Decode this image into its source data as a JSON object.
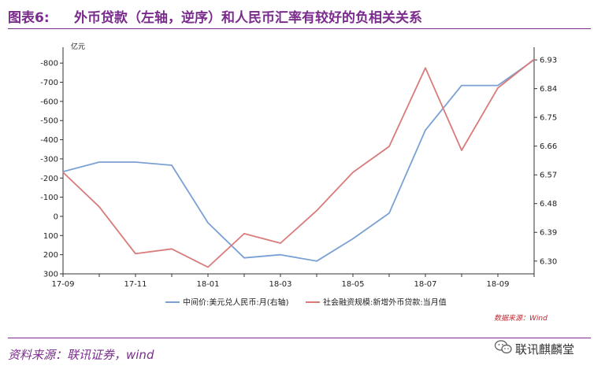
{
  "header": {
    "figure_label": "图表6:",
    "title": "外币贷款（左轴，逆序）和人民币汇率有较好的负相关关系"
  },
  "footer": {
    "source": "资料来源：联讯证券，wind",
    "watermark": "联讯麒麟堂"
  },
  "colors": {
    "title": "#7a2c8c",
    "usdcny_line": "#7ba1d4",
    "loans_line": "#d97b7b"
  },
  "chart_data": {
    "type": "line",
    "left_axis_unit": "亿元",
    "left_axis_inverted": true,
    "left_ylim": [
      300,
      -850
    ],
    "left_ticks": [
      -800,
      -700,
      -600,
      -500,
      -400,
      -300,
      -200,
      -100,
      0,
      100,
      200,
      300
    ],
    "left_tick_labels": [
      "-800",
      "-700",
      "-600",
      "-500",
      "-400",
      "-300",
      "-200",
      "-100",
      "0",
      "100",
      "200",
      "300"
    ],
    "right_ylim": [
      6.26,
      6.95
    ],
    "right_ticks": [
      6.3,
      6.39,
      6.48,
      6.57,
      6.66,
      6.75,
      6.84,
      6.93
    ],
    "right_tick_labels": [
      "6.30",
      "6.39",
      "6.48",
      "6.57",
      "6.66",
      "6.75",
      "6.84",
      "6.93"
    ],
    "x": [
      "2017-09",
      "2017-10",
      "2017-11",
      "2017-12",
      "2018-01",
      "2018-02",
      "2018-03",
      "2018-04",
      "2018-05",
      "2018-06",
      "2018-07",
      "2018-08",
      "2018-09",
      "2018-10"
    ],
    "x_tick_labels": [
      "17-09",
      "17-11",
      "18-01",
      "18-03",
      "18-05",
      "18-07",
      "18-09"
    ],
    "series": [
      {
        "name": "中间价:美元兑人民币:月(右轴)",
        "axis": "right",
        "values": [
          6.58,
          6.61,
          6.61,
          6.6,
          6.42,
          6.31,
          6.32,
          6.3,
          6.37,
          6.45,
          6.71,
          6.85,
          6.85,
          6.93
        ]
      },
      {
        "name": "社会融资规模:新增外币贷款:当月值",
        "axis": "left",
        "values": [
          -230,
          -50,
          195,
          170,
          265,
          90,
          140,
          -30,
          -230,
          -365,
          -775,
          -345,
          -670,
          -820
        ]
      }
    ],
    "legend_position": "bottom",
    "grid": false,
    "data_source_note": "数据来源：Wind"
  }
}
